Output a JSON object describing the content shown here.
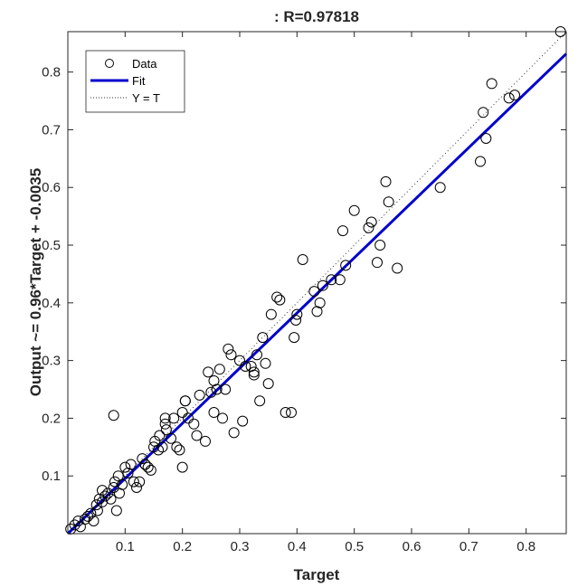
{
  "chart_data": {
    "type": "scatter",
    "title": ": R=0.97818",
    "xlabel": "Target",
    "ylabel": "Output ~= 0.96*Target + -0.0035",
    "xlim": [
      0,
      0.87
    ],
    "ylim": [
      0,
      0.87
    ],
    "xticks": [
      "0.1",
      "0.2",
      "0.3",
      "0.4",
      "0.5",
      "0.6",
      "0.7",
      "0.8"
    ],
    "yticks": [
      "0.1",
      "0.2",
      "0.3",
      "0.4",
      "0.5",
      "0.6",
      "0.7",
      "0.8"
    ],
    "tick_values": [
      0.1,
      0.2,
      0.3,
      0.4,
      0.5,
      0.6,
      0.7,
      0.8
    ],
    "grid": false,
    "legend_position": "top-left",
    "series": [
      {
        "name": "Data",
        "kind": "markers",
        "marker": "circle",
        "color": "#000000",
        "points": [
          [
            0.005,
            0.008
          ],
          [
            0.012,
            0.015
          ],
          [
            0.018,
            0.022
          ],
          [
            0.022,
            0.012
          ],
          [
            0.03,
            0.025
          ],
          [
            0.035,
            0.03
          ],
          [
            0.04,
            0.035
          ],
          [
            0.045,
            0.022
          ],
          [
            0.05,
            0.05
          ],
          [
            0.052,
            0.04
          ],
          [
            0.055,
            0.06
          ],
          [
            0.06,
            0.055
          ],
          [
            0.065,
            0.065
          ],
          [
            0.07,
            0.07
          ],
          [
            0.075,
            0.06
          ],
          [
            0.08,
            0.08
          ],
          [
            0.082,
            0.09
          ],
          [
            0.085,
            0.04
          ],
          [
            0.088,
            0.1
          ],
          [
            0.09,
            0.07
          ],
          [
            0.095,
            0.085
          ],
          [
            0.1,
            0.115
          ],
          [
            0.105,
            0.105
          ],
          [
            0.11,
            0.12
          ],
          [
            0.115,
            0.09
          ],
          [
            0.12,
            0.08
          ],
          [
            0.125,
            0.09
          ],
          [
            0.13,
            0.13
          ],
          [
            0.135,
            0.12
          ],
          [
            0.14,
            0.115
          ],
          [
            0.145,
            0.11
          ],
          [
            0.15,
            0.15
          ],
          [
            0.152,
            0.16
          ],
          [
            0.158,
            0.145
          ],
          [
            0.16,
            0.17
          ],
          [
            0.165,
            0.15
          ],
          [
            0.17,
            0.19
          ],
          [
            0.172,
            0.18
          ],
          [
            0.18,
            0.165
          ],
          [
            0.185,
            0.2
          ],
          [
            0.19,
            0.15
          ],
          [
            0.195,
            0.145
          ],
          [
            0.2,
            0.21
          ],
          [
            0.205,
            0.23
          ],
          [
            0.21,
            0.2
          ],
          [
            0.22,
            0.19
          ],
          [
            0.225,
            0.17
          ],
          [
            0.23,
            0.24
          ],
          [
            0.24,
            0.16
          ],
          [
            0.245,
            0.28
          ],
          [
            0.25,
            0.245
          ],
          [
            0.255,
            0.21
          ],
          [
            0.26,
            0.25
          ],
          [
            0.265,
            0.285
          ],
          [
            0.27,
            0.2
          ],
          [
            0.275,
            0.25
          ],
          [
            0.28,
            0.32
          ],
          [
            0.285,
            0.31
          ],
          [
            0.29,
            0.175
          ],
          [
            0.3,
            0.3
          ],
          [
            0.305,
            0.195
          ],
          [
            0.31,
            0.29
          ],
          [
            0.32,
            0.29
          ],
          [
            0.325,
            0.28
          ],
          [
            0.33,
            0.31
          ],
          [
            0.335,
            0.23
          ],
          [
            0.34,
            0.34
          ],
          [
            0.345,
            0.295
          ],
          [
            0.35,
            0.26
          ],
          [
            0.355,
            0.38
          ],
          [
            0.365,
            0.41
          ],
          [
            0.37,
            0.405
          ],
          [
            0.38,
            0.21
          ],
          [
            0.395,
            0.34
          ],
          [
            0.398,
            0.37
          ],
          [
            0.4,
            0.38
          ],
          [
            0.41,
            0.475
          ],
          [
            0.43,
            0.42
          ],
          [
            0.435,
            0.385
          ],
          [
            0.44,
            0.4
          ],
          [
            0.445,
            0.43
          ],
          [
            0.46,
            0.44
          ],
          [
            0.475,
            0.44
          ],
          [
            0.48,
            0.525
          ],
          [
            0.485,
            0.465
          ],
          [
            0.5,
            0.56
          ],
          [
            0.525,
            0.53
          ],
          [
            0.53,
            0.54
          ],
          [
            0.54,
            0.47
          ],
          [
            0.545,
            0.5
          ],
          [
            0.555,
            0.61
          ],
          [
            0.56,
            0.575
          ],
          [
            0.575,
            0.46
          ],
          [
            0.65,
            0.6
          ],
          [
            0.72,
            0.645
          ],
          [
            0.725,
            0.73
          ],
          [
            0.73,
            0.685
          ],
          [
            0.74,
            0.78
          ],
          [
            0.77,
            0.755
          ],
          [
            0.78,
            0.76
          ],
          [
            0.86,
            0.87
          ],
          [
            0.08,
            0.205
          ],
          [
            0.2,
            0.115
          ],
          [
            0.06,
            0.075
          ],
          [
            0.135,
            0.12
          ],
          [
            0.17,
            0.2
          ],
          [
            0.325,
            0.275
          ],
          [
            0.205,
            0.23
          ],
          [
            0.255,
            0.265
          ],
          [
            0.39,
            0.21
          ]
        ]
      },
      {
        "name": "Fit",
        "kind": "line",
        "color": "#0000cc",
        "x": [
          0,
          0.87
        ],
        "y": [
          -0.0035,
          0.8317
        ]
      },
      {
        "name": "Y = T",
        "kind": "dotted-line",
        "color": "#333333",
        "x": [
          0,
          0.87
        ],
        "y": [
          0,
          0.87
        ]
      }
    ]
  }
}
